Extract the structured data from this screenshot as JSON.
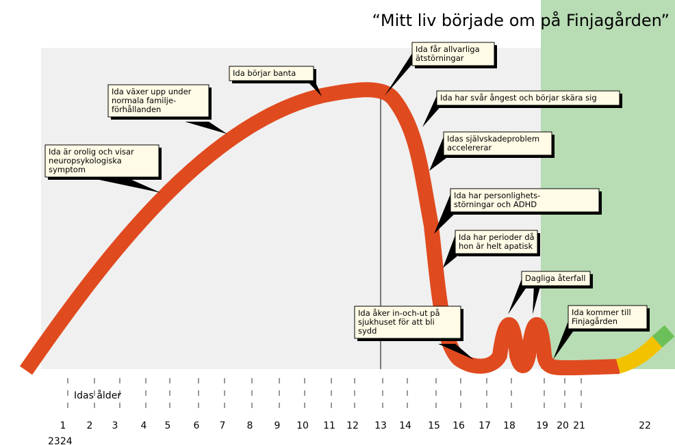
{
  "title": "“Mitt liv började om på Finjagården”",
  "axis_label": "Idas ålder",
  "ages": [
    "1",
    "2",
    "3",
    "4",
    "5",
    "6",
    "7",
    "8",
    "9",
    "10",
    "11",
    "12",
    "13",
    "14",
    "15",
    "16",
    "17",
    "18",
    "19",
    "20",
    "21",
    "22"
  ],
  "extra_age_label": "2324",
  "callouts": [
    {
      "lines": [
        "Ida är orolig och visar",
        "neuropsykologiska",
        "symptom"
      ]
    },
    {
      "lines": [
        "Ida växer upp under",
        "normala familje-",
        "förhållanden"
      ]
    },
    {
      "lines": [
        "Ida börjar banta"
      ]
    },
    {
      "lines": [
        "Ida får allvarliga",
        "ätstörningar"
      ]
    },
    {
      "lines": [
        "Ida har svår ångest och börjar skära sig"
      ]
    },
    {
      "lines": [
        "Idas självskadeproblem",
        "accelererar"
      ]
    },
    {
      "lines": [
        "Ida har personlighets-",
        "störningar och ADHD"
      ]
    },
    {
      "lines": [
        "Ida har perioder då",
        "hon är helt apatisk"
      ]
    },
    {
      "lines": [
        "Ida åker in-och-ut på",
        "sjukhuset för att bli",
        "sydd"
      ]
    },
    {
      "lines": [
        "Dagliga återfall"
      ]
    },
    {
      "lines": [
        "Ida kommer till",
        "Finjagården"
      ]
    }
  ]
}
